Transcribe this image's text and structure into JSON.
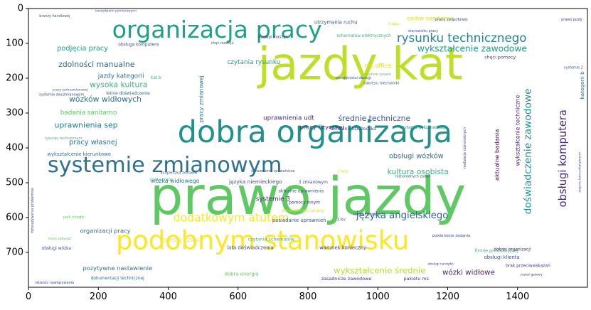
{
  "chart_data": {
    "type": "wordcloud",
    "title": "",
    "xlabel": "",
    "ylabel": "",
    "xlim": [
      0,
      1600
    ],
    "ylim": [
      800,
      0
    ],
    "x_ticks": [
      0,
      200,
      400,
      600,
      800,
      1000,
      1200,
      1400
    ],
    "y_ticks": [
      0,
      100,
      200,
      300,
      400,
      500,
      600,
      700
    ],
    "grid": false,
    "words": [
      {
        "text": "prawo jazdy",
        "x": 800,
        "y": 540,
        "size": 150,
        "color": "#5ec962",
        "rotate": false
      },
      {
        "text": "jazdy kat",
        "x": 950,
        "y": 160,
        "size": 130,
        "color": "#bddf26",
        "rotate": false
      },
      {
        "text": "dobra organizacja",
        "x": 820,
        "y": 355,
        "size": 88,
        "color": "#21918c",
        "rotate": false
      },
      {
        "text": "podobnym stanowisku",
        "x": 670,
        "y": 665,
        "size": 75,
        "color": "#fde725",
        "rotate": false
      },
      {
        "text": "organizacja pracy",
        "x": 540,
        "y": 60,
        "size": 68,
        "color": "#1fa187",
        "rotate": false
      },
      {
        "text": "systemie zmianowym",
        "x": 390,
        "y": 450,
        "size": 62,
        "color": "#2c728e",
        "rotate": false
      },
      {
        "text": "rysunku technicznego",
        "x": 1240,
        "y": 85,
        "size": 34,
        "color": "#26828e",
        "rotate": false
      },
      {
        "text": "dodatkowym atutem",
        "x": 580,
        "y": 600,
        "size": 32,
        "color": "#fde725",
        "rotate": false
      },
      {
        "text": "języka angielskiego",
        "x": 1070,
        "y": 595,
        "size": 27,
        "color": "#33638d",
        "rotate": false
      },
      {
        "text": "obsługi komputera",
        "x": 1530,
        "y": 430,
        "size": 30,
        "color": "#482878",
        "rotate": true
      },
      {
        "text": "doświadczenie zawodowe",
        "x": 1430,
        "y": 410,
        "size": 28,
        "color": "#21918c",
        "rotate": true
      },
      {
        "text": "wykształcenie zawodowe",
        "x": 1270,
        "y": 115,
        "size": 25,
        "color": "#1f9e89",
        "rotate": false
      },
      {
        "text": "wykształcenie średnie",
        "x": 1005,
        "y": 752,
        "size": 24,
        "color": "#b5de2b",
        "rotate": false
      },
      {
        "text": "wysoka kultura",
        "x": 258,
        "y": 218,
        "size": 22,
        "color": "#35b779",
        "rotate": false
      },
      {
        "text": "wózków widłowych",
        "x": 220,
        "y": 260,
        "size": 22,
        "color": "#2c728e",
        "rotate": false
      },
      {
        "text": "zdolności manualne",
        "x": 195,
        "y": 160,
        "size": 22,
        "color": "#31688e",
        "rotate": false
      },
      {
        "text": "uprawnienia sep",
        "x": 165,
        "y": 335,
        "size": 22,
        "color": "#287c8e",
        "rotate": false
      },
      {
        "text": "średnie techniczne",
        "x": 990,
        "y": 315,
        "size": 22,
        "color": "#3b528b",
        "rotate": false
      },
      {
        "text": "kultura osobista",
        "x": 1115,
        "y": 468,
        "size": 22,
        "color": "#35b779",
        "rotate": false
      },
      {
        "text": "obsługi wózków",
        "x": 1110,
        "y": 424,
        "size": 20,
        "color": "#2c728e",
        "rotate": false
      },
      {
        "text": "wózki widłowe",
        "x": 1260,
        "y": 758,
        "size": 21,
        "color": "#482878",
        "rotate": false
      },
      {
        "text": "pracy własnej",
        "x": 185,
        "y": 385,
        "size": 20,
        "color": "#2c728e",
        "rotate": false
      },
      {
        "text": "podjęcia pracy",
        "x": 155,
        "y": 115,
        "size": 20,
        "color": "#1f9e89",
        "rotate": false
      },
      {
        "text": "jazdy kategorii",
        "x": 265,
        "y": 195,
        "size": 18,
        "color": "#2d708e",
        "rotate": false
      },
      {
        "text": "uprawnienia udt",
        "x": 745,
        "y": 315,
        "size": 18,
        "color": "#472d7b",
        "rotate": false
      },
      {
        "text": "systemie 3",
        "x": 700,
        "y": 548,
        "size": 18,
        "color": "#482878",
        "rotate": false
      },
      {
        "text": "organizacji pracy",
        "x": 220,
        "y": 638,
        "size": 17,
        "color": "#31688e",
        "rotate": false
      },
      {
        "text": "pozytywne nastawienie",
        "x": 255,
        "y": 745,
        "size": 17,
        "color": "#2c728e",
        "rotate": false
      },
      {
        "text": "presją czasu",
        "x": 440,
        "y": 665,
        "size": 18,
        "color": "#fde725",
        "rotate": false
      },
      {
        "text": "czytania rysunku",
        "x": 645,
        "y": 155,
        "size": 18,
        "color": "#1fa187",
        "rotate": false
      },
      {
        "text": "celów sanitarno",
        "x": 1150,
        "y": 28,
        "size": 17,
        "color": "#d8e219",
        "rotate": false
      },
      {
        "text": "badania sanitarno",
        "x": 172,
        "y": 300,
        "size": 18,
        "color": "#5ec962",
        "rotate": false
      },
      {
        "text": "wózka widłowego",
        "x": 420,
        "y": 495,
        "size": 16,
        "color": "#287c8e",
        "rotate": false
      },
      {
        "text": "języka niemieckiego",
        "x": 650,
        "y": 497,
        "size": 15,
        "color": "#3e4a89",
        "rotate": false
      },
      {
        "text": "ms office",
        "x": 1000,
        "y": 163,
        "size": 17,
        "color": "#d8e219",
        "rotate": false
      },
      {
        "text": "pracy fizycznej",
        "x": 840,
        "y": 340,
        "size": 17,
        "color": "#443983",
        "rotate": false
      },
      {
        "text": "wykształcenie kierunkowe",
        "x": 145,
        "y": 418,
        "size": 14,
        "color": "#2c728e",
        "rotate": false
      },
      {
        "text": "obsługi klienta",
        "x": 1355,
        "y": 714,
        "size": 14,
        "color": "#3b528b",
        "rotate": false
      },
      {
        "text": "brak przeciwwskazań",
        "x": 1430,
        "y": 740,
        "size": 12,
        "color": "#443983",
        "rotate": false
      },
      {
        "text": "dobra energia",
        "x": 610,
        "y": 762,
        "size": 14,
        "color": "#5ec962",
        "rotate": false
      },
      {
        "text": "zasadnicze zawodowe",
        "x": 910,
        "y": 776,
        "size": 13,
        "color": "#472d7b",
        "rotate": false
      },
      {
        "text": "pakietu ms",
        "x": 1110,
        "y": 776,
        "size": 13,
        "color": "#472d7b",
        "rotate": false
      },
      {
        "text": "dokumentacji technicznej",
        "x": 255,
        "y": 775,
        "size": 12,
        "color": "#31688e",
        "rotate": false
      },
      {
        "text": "lata doświadczenia",
        "x": 635,
        "y": 687,
        "size": 14,
        "color": "#3b528b",
        "rotate": false
      },
      {
        "text": "warunek konieczny",
        "x": 900,
        "y": 687,
        "size": 14,
        "color": "#443983",
        "rotate": false
      },
      {
        "text": "czytania schematów",
        "x": 695,
        "y": 662,
        "size": 13,
        "color": "#35b779",
        "rotate": false
      },
      {
        "text": "posiadanie uprawnień",
        "x": 775,
        "y": 608,
        "size": 14,
        "color": "#3b528b",
        "rotate": false
      },
      {
        "text": "umiejętności pracy",
        "x": 785,
        "y": 580,
        "size": 13,
        "color": "#d8e219",
        "rotate": false
      },
      {
        "text": "pomocy innym",
        "x": 790,
        "y": 558,
        "size": 12,
        "color": "#472d7b",
        "rotate": false
      },
      {
        "text": "aktualne uprawnienia",
        "x": 780,
        "y": 525,
        "size": 12,
        "color": "#3b528b",
        "rotate": false
      },
      {
        "text": "aktualna książeczka",
        "x": 930,
        "y": 345,
        "size": 13,
        "color": "#3e4a89",
        "rotate": false
      },
      {
        "text": "czytania dokumentacji",
        "x": 1130,
        "y": 343,
        "size": 12,
        "color": "#21918c",
        "rotate": false
      },
      {
        "text": "pracy zmianowej",
        "x": 495,
        "y": 260,
        "size": 16,
        "color": "#2c728e",
        "rotate": true
      },
      {
        "text": "aktualne badania",
        "x": 1340,
        "y": 420,
        "size": 17,
        "color": "#440154",
        "rotate": true
      },
      {
        "text": "wykształcenie techniczne",
        "x": 1400,
        "y": 350,
        "size": 16,
        "color": "#482878",
        "rotate": true
      },
      {
        "text": "kategorii b",
        "x": 1585,
        "y": 220,
        "size": 15,
        "color": "#2c728e",
        "rotate": true
      },
      {
        "text": "rozwiązywania problemów",
        "x": 12,
        "y": 580,
        "size": 10,
        "color": "#3b528b",
        "rotate": true
      },
      {
        "text": "firmie produkcyjnej",
        "x": 1340,
        "y": 695,
        "size": 13,
        "color": "#35b779",
        "rotate": false
      },
      {
        "text": "dobrej organizacji",
        "x": 1385,
        "y": 693,
        "size": 12,
        "color": "#472d7b",
        "rotate": false
      },
      {
        "text": "utrzymania ruchu",
        "x": 880,
        "y": 40,
        "size": 14,
        "color": "#3b528b",
        "rotate": false
      },
      {
        "text": "schematów elektrycznych",
        "x": 960,
        "y": 80,
        "size": 12,
        "color": "#35b779",
        "rotate": false
      },
      {
        "text": "chęci pomocy",
        "x": 1350,
        "y": 140,
        "size": 13,
        "color": "#443983",
        "rotate": false
      },
      {
        "text": "obsługa komputera",
        "x": 315,
        "y": 105,
        "size": 12,
        "color": "#3b528b",
        "rotate": false
      },
      {
        "text": "obsługi maszyn",
        "x": 700,
        "y": 83,
        "size": 11,
        "color": "#472d7b",
        "rotate": false
      },
      {
        "text": "pracy zespołowej",
        "x": 1210,
        "y": 33,
        "size": 11,
        "color": "#3b528b",
        "rotate": false
      },
      {
        "text": "kat b",
        "x": 365,
        "y": 200,
        "size": 12,
        "color": "#35b779",
        "rotate": false
      },
      {
        "text": "1 kv",
        "x": 895,
        "y": 607,
        "size": 12,
        "color": "#3b528b",
        "rotate": false
      },
      {
        "text": "3 zmianowym",
        "x": 815,
        "y": 500,
        "size": 12,
        "color": "#3b528b",
        "rotate": false
      },
      {
        "text": "obsługi wózka",
        "x": 80,
        "y": 690,
        "size": 12,
        "color": "#3b528b",
        "rotate": false
      },
      {
        "text": "karta kierowcy",
        "x": 970,
        "y": 592,
        "size": 11,
        "color": "#3b528b",
        "rotate": false
      },
      {
        "text": "powierzone zadania",
        "x": 1210,
        "y": 653,
        "size": 11,
        "color": "#3b528b",
        "rotate": false
      },
      {
        "text": "realizacje różnorodnych",
        "x": 1250,
        "y": 400,
        "size": 10,
        "color": "#443983",
        "rotate": true
      },
      {
        "text": "zakresu mechaniki",
        "x": 1010,
        "y": 215,
        "size": 11,
        "color": "#3b528b",
        "rotate": false
      },
      {
        "text": "czynne prawo",
        "x": 1000,
        "y": 190,
        "size": 11,
        "color": "#5ec962",
        "rotate": false
      },
      {
        "text": "książeczka zdrowia",
        "x": 430,
        "y": 472,
        "size": 11,
        "color": "#3b528b",
        "rotate": false
      },
      {
        "text": "uprawnienia spawalnicze",
        "x": 700,
        "y": 467,
        "size": 10,
        "color": "#3b528b",
        "rotate": false
      },
      {
        "text": "branży handlowej",
        "x": 75,
        "y": 22,
        "size": 10,
        "color": "#3b528b",
        "rotate": false
      },
      {
        "text": "systemie dwuzmianowym",
        "x": 95,
        "y": 248,
        "size": 10,
        "color": "#3b528b",
        "rotate": false
      },
      {
        "text": "pracy jednozmianowej",
        "x": 120,
        "y": 235,
        "size": 9,
        "color": "#3b528b",
        "rotate": false
      },
      {
        "text": "rysunku technicznym",
        "x": 100,
        "y": 373,
        "size": 10,
        "color": "#35b779",
        "rotate": false
      },
      {
        "text": "letnie doświadczenie",
        "x": 285,
        "y": 245,
        "size": 12,
        "color": "#31688e",
        "rotate": false
      },
      {
        "text": "stanowisku pracy",
        "x": 1130,
        "y": 65,
        "size": 10,
        "color": "#3b528b",
        "rotate": false
      },
      {
        "text": "systemie 2",
        "x": 1560,
        "y": 170,
        "size": 10,
        "color": "#3b528b",
        "rotate": false
      },
      {
        "text": "prawo jazdy",
        "x": 1555,
        "y": 33,
        "size": 10,
        "color": "#443983",
        "rotate": false
      },
      {
        "text": "chęć rozwoju",
        "x": 555,
        "y": 100,
        "size": 10,
        "color": "#3b528b",
        "rotate": false
      },
      {
        "text": "czasu pracy",
        "x": 380,
        "y": 492,
        "size": 11,
        "color": "#35b779",
        "rotate": false
      },
      {
        "text": "jeśli chodzi",
        "x": 130,
        "y": 600,
        "size": 11,
        "color": "#5ec962",
        "rotate": false
      },
      {
        "text": "może odbywać",
        "x": 90,
        "y": 662,
        "size": 9,
        "color": "#5ec962",
        "rotate": false
      },
      {
        "text": "obsługi narzędzi",
        "x": 1180,
        "y": 735,
        "size": 9,
        "color": "#443983",
        "rotate": false
      },
      {
        "text": "łatwość nawiązywania",
        "x": 75,
        "y": 788,
        "size": 10,
        "color": "#3b528b",
        "rotate": false
      },
      {
        "text": "różnorodnych zadań",
        "x": 1100,
        "y": 483,
        "size": 10,
        "color": "#3b528b",
        "rotate": false
      },
      {
        "text": "jesteś gotowy",
        "x": 1440,
        "y": 765,
        "size": 9,
        "color": "#443983",
        "rotate": false
      },
      {
        "text": "stopniu komunikatywnym",
        "x": 1580,
        "y": 470,
        "size": 9,
        "color": "#3b528b",
        "rotate": true
      },
      {
        "text": "narzędziami pomiarowymi",
        "x": 250,
        "y": 8,
        "size": 9,
        "color": "#3b528b",
        "rotate": false
      },
      {
        "text": "3 lata",
        "x": 1045,
        "y": 45,
        "size": 11,
        "color": "#d8e219",
        "rotate": false
      },
      {
        "text": "2 lata",
        "x": 900,
        "y": 468,
        "size": 11,
        "color": "#d8e219",
        "rotate": false
      },
      {
        "text": "umiejętności obsługi",
        "x": 930,
        "y": 200,
        "size": 10,
        "color": "#3b528b",
        "rotate": false
      }
    ]
  }
}
